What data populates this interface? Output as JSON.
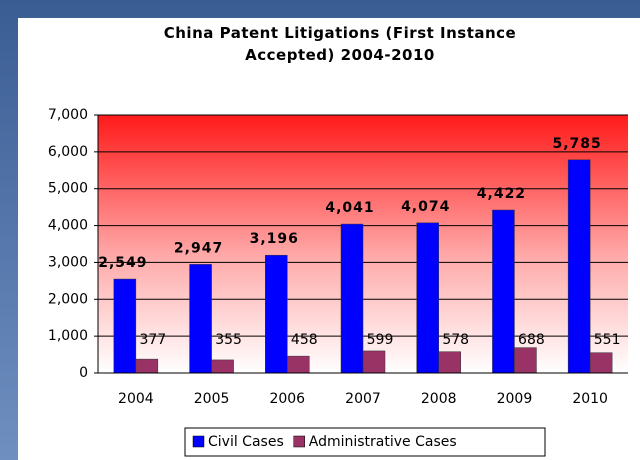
{
  "chart_data": {
    "type": "bar",
    "title": "China Patent Litigations (First Instance Accepted) 2004-2010",
    "categories": [
      "2004",
      "2005",
      "2006",
      "2007",
      "2008",
      "2009",
      "2010"
    ],
    "series": [
      {
        "name": "Civil Cases",
        "color": "#0000ff",
        "values": [
          2549,
          2947,
          3196,
          4041,
          4074,
          4422,
          5785
        ],
        "value_labels": [
          "2,549",
          "2,947",
          "3,196",
          "4,041",
          "4,074",
          "4,422",
          "5,785"
        ]
      },
      {
        "name": "Administrative Cases",
        "color": "#993366",
        "values": [
          377,
          355,
          458,
          599,
          578,
          688,
          551
        ]
      }
    ],
    "ylim": [
      0,
      7000
    ],
    "yticks": [
      0,
      {
        "value": 1000,
        "label": "1,000"
      },
      {
        "value": 2000,
        "label": "2,000"
      },
      {
        "value": 3000,
        "label": "3,000"
      },
      {
        "value": 4000,
        "label": "4,000"
      },
      {
        "value": 5000,
        "label": "5,000"
      },
      {
        "value": 6000,
        "label": "6,000"
      },
      {
        "value": 7000,
        "label": "7,000"
      }
    ],
    "grid": true,
    "legend": "bottom"
  }
}
